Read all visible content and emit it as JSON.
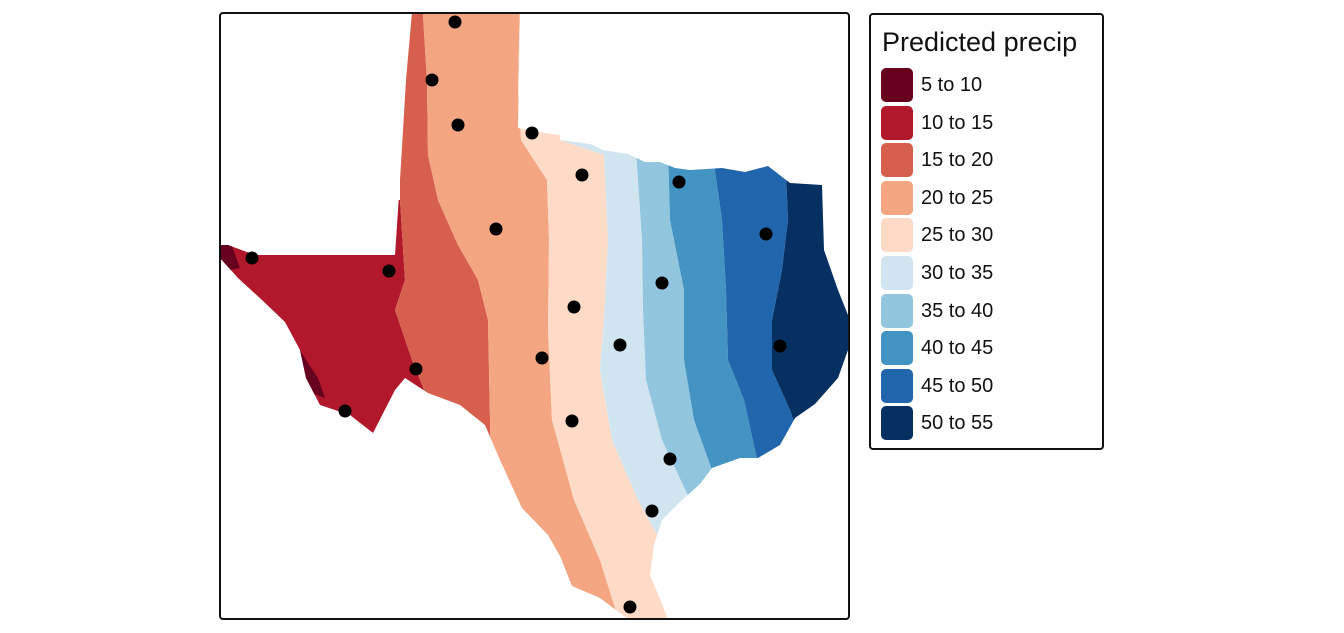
{
  "legend": {
    "title": "Predicted precip",
    "classes": [
      {
        "label": "5 to 10",
        "min": 5,
        "max": 10,
        "color": "#67001F"
      },
      {
        "label": "10 to 15",
        "min": 10,
        "max": 15,
        "color": "#B2182B"
      },
      {
        "label": "15 to 20",
        "min": 15,
        "max": 20,
        "color": "#D6604D"
      },
      {
        "label": "20 to 25",
        "min": 20,
        "max": 25,
        "color": "#F4A582"
      },
      {
        "label": "25 to 30",
        "min": 25,
        "max": 30,
        "color": "#FDDBC7"
      },
      {
        "label": "30 to 35",
        "min": 30,
        "max": 35,
        "color": "#D1E5F0"
      },
      {
        "label": "35 to 40",
        "min": 35,
        "max": 40,
        "color": "#92C5DE"
      },
      {
        "label": "40 to 45",
        "min": 40,
        "max": 45,
        "color": "#4393C3"
      },
      {
        "label": "45 to 50",
        "min": 45,
        "max": 50,
        "color": "#2166AC"
      },
      {
        "label": "50 to 55",
        "min": 50,
        "max": 55,
        "color": "#053061"
      }
    ]
  },
  "map": {
    "region": "Texas",
    "point_color": "#000000",
    "station_count": 22
  }
}
